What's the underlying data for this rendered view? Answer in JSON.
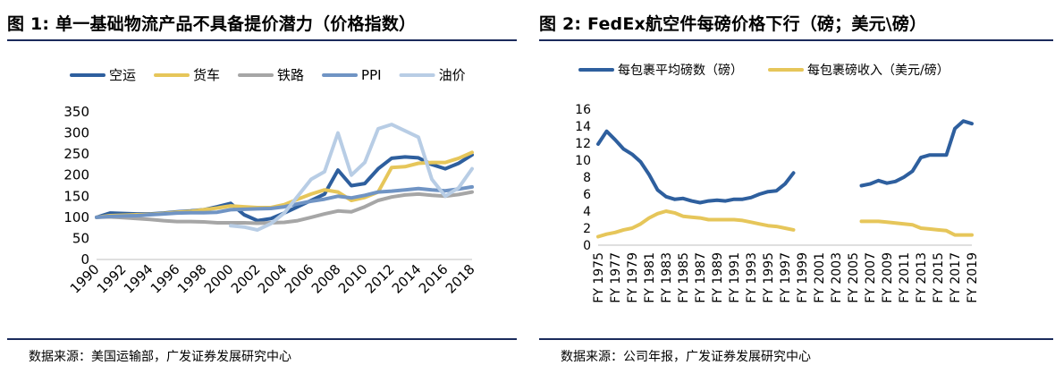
{
  "left": {
    "title": "图  1:  单一基础物流产品不具备提价潜力（价格指数）",
    "source": "数据来源：美国运输部，广发证券发展研究中心"
  },
  "right": {
    "title": "图  2:  FedEx航空件每磅价格下行（磅；美元\\磅）",
    "source": "数据来源：公司年报，广发证券发展研究中心"
  },
  "chart_data": [
    {
      "type": "line",
      "x": [
        1990,
        1991,
        1992,
        1993,
        1994,
        1995,
        1996,
        1997,
        1998,
        1999,
        2000,
        2001,
        2002,
        2003,
        2004,
        2005,
        2006,
        2007,
        2008,
        2009,
        2010,
        2011,
        2012,
        2013,
        2014,
        2015,
        2016,
        2017,
        2018
      ],
      "x_tick_labels": [
        "1990",
        "1992",
        "1994",
        "1996",
        "1998",
        "2000",
        "2002",
        "2004",
        "2006",
        "2008",
        "2010",
        "2012",
        "2014",
        "2016",
        "2018"
      ],
      "ylim": [
        0,
        350
      ],
      "y_ticks": [
        0,
        50,
        100,
        150,
        200,
        250,
        300,
        350
      ],
      "legend_position": "top",
      "series": [
        {
          "name": "空运",
          "color": "#2e5f9e",
          "values": [
            100,
            110,
            109,
            108,
            108,
            110,
            113,
            115,
            118,
            125,
            133,
            106,
            92,
            97,
            110,
            125,
            140,
            155,
            212,
            175,
            180,
            215,
            240,
            243,
            241,
            225,
            215,
            228,
            248
          ]
        },
        {
          "name": "货车",
          "color": "#e6c65a",
          "values": [
            100,
            104,
            105,
            106,
            107,
            109,
            112,
            114,
            118,
            122,
            127,
            125,
            123,
            123,
            130,
            143,
            155,
            165,
            160,
            140,
            147,
            160,
            218,
            220,
            228,
            230,
            230,
            240,
            254
          ]
        },
        {
          "name": "铁路",
          "color": "#a6a6a6",
          "values": [
            100,
            101,
            99,
            97,
            95,
            92,
            90,
            90,
            89,
            87,
            87,
            87,
            86,
            87,
            88,
            92,
            100,
            108,
            115,
            113,
            125,
            140,
            148,
            153,
            155,
            152,
            150,
            154,
            160
          ]
        },
        {
          "name": "PPI",
          "color": "#7094c4",
          "values": [
            100,
            102,
            103,
            104,
            106,
            108,
            110,
            111,
            111,
            112,
            118,
            119,
            120,
            121,
            125,
            132,
            138,
            143,
            150,
            146,
            152,
            160,
            162,
            165,
            168,
            165,
            163,
            167,
            172
          ]
        },
        {
          "name": "油价",
          "color": "#b8cde5",
          "values": [
            null,
            null,
            null,
            null,
            null,
            null,
            null,
            null,
            null,
            null,
            80,
            77,
            70,
            85,
            110,
            150,
            190,
            208,
            300,
            200,
            230,
            310,
            320,
            305,
            290,
            190,
            150,
            170,
            215
          ]
        }
      ]
    },
    {
      "type": "line",
      "x": [
        "FY 1975",
        "FY 1976",
        "FY 1977",
        "FY 1978",
        "FY 1979",
        "FY 1980",
        "FY 1981",
        "FY 1982",
        "FY 1983",
        "FY 1984",
        "FY 1985",
        "FY 1986",
        "FY 1987",
        "FY 1988",
        "FY 1989",
        "FY 1990",
        "FY 1991",
        "FY 1992",
        "FY 1993",
        "FY 1994",
        "FY 1995",
        "FY 1996",
        "FY 1997",
        "FY 1998",
        "FY 1999",
        "FY 2000",
        "FY 2001",
        "FY 2002",
        "FY 2003",
        "FY 2004",
        "FY 2005",
        "FY 2006",
        "FY 2007",
        "FY 2008",
        "FY 2009",
        "FY 2010",
        "FY 2011",
        "FY 2012",
        "FY 2013",
        "FY 2014",
        "FY 2015",
        "FY 2016",
        "FY 2017",
        "FY 2018",
        "FY 2019"
      ],
      "x_tick_labels": [
        "FY 1975",
        "FY 1977",
        "FY 1979",
        "FY 1981",
        "FY 1983",
        "FY 1985",
        "FY 1987",
        "FY 1989",
        "FY 1991",
        "FY 1993",
        "FY 1995",
        "FY 1997",
        "FY 1999",
        "FY 2001",
        "FY 2003",
        "FY 2005",
        "FY 2007",
        "FY 2009",
        "FY 2011",
        "FY 2013",
        "FY 2015",
        "FY 2017",
        "FY 2019"
      ],
      "ylim": [
        0,
        16
      ],
      "y_ticks": [
        0,
        2,
        4,
        6,
        8,
        10,
        12,
        14,
        16
      ],
      "legend_position": "top",
      "series": [
        {
          "name": "每包裹平均磅数（磅）",
          "color": "#2e5f9e",
          "values": [
            11.9,
            13.4,
            12.4,
            11.3,
            10.7,
            9.8,
            8.3,
            6.5,
            5.7,
            5.4,
            5.5,
            5.2,
            5.0,
            5.2,
            5.3,
            5.2,
            5.4,
            5.4,
            5.6,
            6.0,
            6.3,
            6.4,
            7.2,
            8.5,
            null,
            null,
            null,
            null,
            null,
            null,
            null,
            7.0,
            7.2,
            7.6,
            7.3,
            7.5,
            8.0,
            8.7,
            10.3,
            10.6,
            10.6,
            10.6,
            13.7,
            14.6,
            14.3
          ]
        },
        {
          "name": "每包裹磅收入（美元/磅）",
          "color": "#e6c65a",
          "values": [
            1.0,
            1.3,
            1.5,
            1.8,
            2.0,
            2.5,
            3.2,
            3.7,
            4.0,
            3.8,
            3.4,
            3.3,
            3.2,
            3.0,
            3.0,
            3.0,
            3.0,
            2.9,
            2.7,
            2.5,
            2.3,
            2.2,
            2.0,
            1.8,
            null,
            null,
            null,
            null,
            null,
            null,
            null,
            2.8,
            2.8,
            2.8,
            2.7,
            2.6,
            2.5,
            2.4,
            2.0,
            1.9,
            1.8,
            1.7,
            1.2,
            1.2,
            1.2
          ]
        }
      ]
    }
  ]
}
